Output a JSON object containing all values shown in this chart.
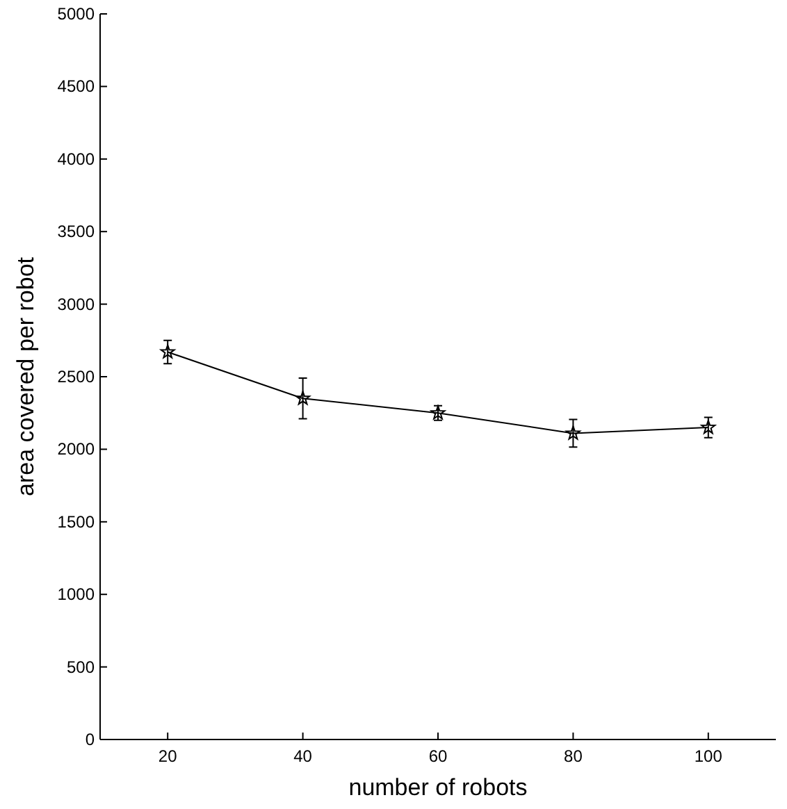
{
  "chart_data": {
    "type": "line",
    "xlabel": "number of robots",
    "ylabel": "area covered per robot",
    "x": [
      20,
      40,
      60,
      80,
      100
    ],
    "series": [
      {
        "color": "#000000",
        "values": [
          2670,
          2350,
          2250,
          2110,
          2150
        ],
        "errors": [
          80,
          140,
          50,
          95,
          70
        ]
      }
    ],
    "xlim": [
      10,
      110
    ],
    "xticks": [
      20,
      40,
      60,
      80,
      100
    ],
    "ylim": [
      0,
      5000
    ],
    "yticks": [
      0,
      500,
      1000,
      1500,
      2000,
      2500,
      3000,
      3500,
      4000,
      4500,
      5000
    ],
    "grid": false,
    "marker": "star",
    "line_style": "solid"
  }
}
